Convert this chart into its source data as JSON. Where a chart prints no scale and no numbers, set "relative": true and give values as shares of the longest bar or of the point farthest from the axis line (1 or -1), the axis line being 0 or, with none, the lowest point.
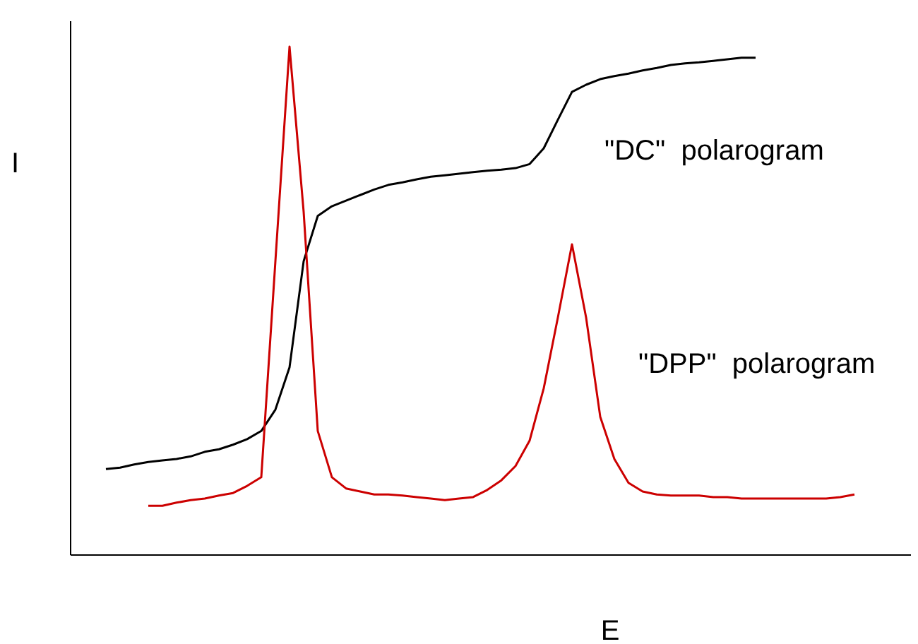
{
  "chart_data": {
    "type": "line",
    "relative": true,
    "xlabel": "E",
    "ylabel": "I",
    "legend": false,
    "marker": "none",
    "categories": [
      null,
      null,
      null,
      null,
      null,
      null,
      null,
      null,
      null,
      null,
      null,
      null,
      null,
      null,
      null,
      null,
      null,
      null,
      null,
      null,
      null,
      null,
      null,
      null,
      null,
      null,
      null,
      null,
      null,
      null,
      null,
      null,
      null,
      null,
      null,
      null,
      null,
      null,
      null,
      null,
      null,
      null,
      null,
      null,
      null,
      null,
      null,
      null,
      null,
      null,
      null,
      null,
      null,
      null,
      null
    ],
    "series": [
      {
        "name": "\"DC\"  polarogram",
        "color": "#000000",
        "values": [
          null,
          0.169,
          0.172,
          0.178,
          0.183,
          0.186,
          0.189,
          0.194,
          0.203,
          0.208,
          0.217,
          0.228,
          0.244,
          0.286,
          0.369,
          0.578,
          0.667,
          0.686,
          0.697,
          0.708,
          0.719,
          0.728,
          0.733,
          0.739,
          0.744,
          0.747,
          0.75,
          0.753,
          0.756,
          0.758,
          0.761,
          0.769,
          0.8,
          0.856,
          0.911,
          0.925,
          0.936,
          0.942,
          0.947,
          0.953,
          0.958,
          0.964,
          0.967,
          0.969,
          0.972,
          0.975,
          0.978,
          0.978,
          null,
          null,
          null,
          null,
          null,
          null,
          null
        ]
      },
      {
        "name": "\"DPP\"  polarogram",
        "color": "#cc0000",
        "values": [
          null,
          null,
          null,
          null,
          0.097,
          0.097,
          0.103,
          0.108,
          0.111,
          0.117,
          0.122,
          0.136,
          0.153,
          0.578,
          1,
          0.675,
          0.244,
          0.153,
          0.131,
          0.125,
          0.119,
          0.119,
          0.117,
          0.114,
          0.111,
          0.108,
          0.111,
          0.114,
          0.128,
          0.147,
          0.175,
          0.225,
          0.328,
          0.467,
          0.611,
          0.467,
          0.272,
          0.189,
          0.142,
          0.125,
          0.119,
          0.117,
          0.117,
          0.117,
          0.114,
          0.114,
          0.111,
          0.111,
          0.111,
          0.111,
          0.111,
          0.111,
          0.111,
          0.114,
          0.119
        ]
      }
    ]
  }
}
